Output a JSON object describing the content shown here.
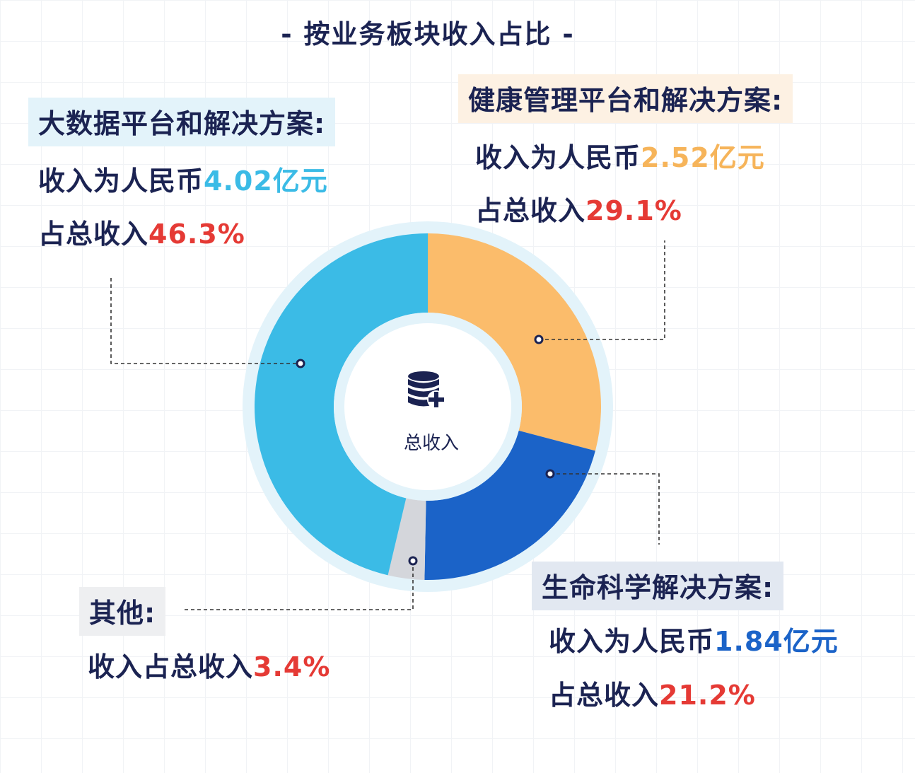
{
  "title": "- 按业务板块收入占比 -",
  "center": {
    "label": "总收入",
    "icon": "database-plus-icon"
  },
  "segments": {
    "bigdata": {
      "name": "大数据平台和解决方案:",
      "revenue_prefix": "收入为人民币",
      "revenue_value": "4.02亿元",
      "share_prefix": "占总收入",
      "share_value": "46.3%"
    },
    "health": {
      "name": "健康管理平台和解决方案:",
      "revenue_prefix": "收入为人民币",
      "revenue_value": "2.52亿元",
      "share_prefix": "占总收入",
      "share_value": "29.1%"
    },
    "life": {
      "name": "生命科学解决方案:",
      "revenue_prefix": "收入为人民币",
      "revenue_value": "1.84亿元",
      "share_prefix": "占总收入",
      "share_value": "21.2%"
    },
    "other": {
      "name": "其他:",
      "share_prefix": "收入占总收入",
      "share_value": "3.4%"
    }
  },
  "colors": {
    "bigdata": "#3bbbe6",
    "health": "#fbbc6b",
    "life": "#1b63c8",
    "other": "#d4d6db",
    "highlight": "#e53a35",
    "text": "#1b2352"
  },
  "chart_data": {
    "type": "pie",
    "title": "- 按业务板块收入占比 -",
    "center_label": "总收入",
    "categories": [
      "健康管理平台和解决方案",
      "生命科学解决方案",
      "其他",
      "大数据平台和解决方案"
    ],
    "values": [
      29.1,
      21.2,
      3.4,
      46.3
    ],
    "revenue_yi_yuan": [
      2.52,
      1.84,
      null,
      4.02
    ],
    "unit": "%"
  }
}
